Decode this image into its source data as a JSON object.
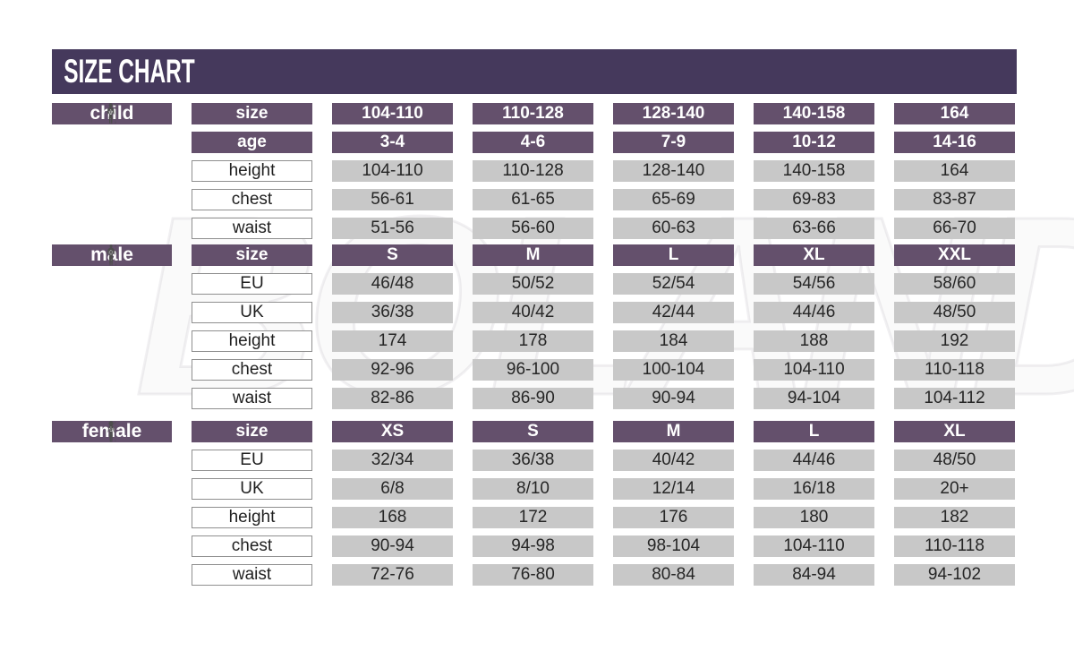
{
  "title": "SIZE CHART",
  "watermark": "BOLAND",
  "colors": {
    "banner": "#45395c",
    "header_purple": "#64506c",
    "value_cell_gray": "#c8c8c8",
    "figure_gray": "#4d4d4d",
    "text_dark": "#262626"
  },
  "figure_labels": {
    "height": "h",
    "chest": "c",
    "waist": "w"
  },
  "sections": [
    {
      "id": "child",
      "label": "child",
      "figure": "child",
      "header_rows": [
        {
          "label": "size",
          "values": [
            "104-110",
            "110-128",
            "128-140",
            "140-158",
            "164"
          ]
        },
        {
          "label": "age",
          "values": [
            "3-4",
            "4-6",
            "7-9",
            "10-12",
            "14-16"
          ]
        }
      ],
      "data_rows": [
        {
          "label": "height",
          "values": [
            "104-110",
            "110-128",
            "128-140",
            "140-158",
            "164"
          ]
        },
        {
          "label": "chest",
          "values": [
            "56-61",
            "61-65",
            "65-69",
            "69-83",
            "83-87"
          ]
        },
        {
          "label": "waist",
          "values": [
            "51-56",
            "56-60",
            "60-63",
            "63-66",
            "66-70"
          ]
        }
      ]
    },
    {
      "id": "male",
      "label": "male",
      "figure": "male",
      "header_rows": [
        {
          "label": "size",
          "values": [
            "S",
            "M",
            "L",
            "XL",
            "XXL"
          ]
        }
      ],
      "data_rows": [
        {
          "label": "EU",
          "values": [
            "46/48",
            "50/52",
            "52/54",
            "54/56",
            "58/60"
          ]
        },
        {
          "label": "UK",
          "values": [
            "36/38",
            "40/42",
            "42/44",
            "44/46",
            "48/50"
          ]
        },
        {
          "label": "height",
          "values": [
            "174",
            "178",
            "184",
            "188",
            "192"
          ]
        },
        {
          "label": "chest",
          "values": [
            "92-96",
            "96-100",
            "100-104",
            "104-110",
            "110-118"
          ]
        },
        {
          "label": "waist",
          "values": [
            "82-86",
            "86-90",
            "90-94",
            "94-104",
            "104-112"
          ]
        }
      ]
    },
    {
      "id": "female",
      "label": "female",
      "figure": "female",
      "header_rows": [
        {
          "label": "size",
          "values": [
            "XS",
            "S",
            "M",
            "L",
            "XL"
          ]
        }
      ],
      "data_rows": [
        {
          "label": "EU",
          "values": [
            "32/34",
            "36/38",
            "40/42",
            "44/46",
            "48/50"
          ]
        },
        {
          "label": "UK",
          "values": [
            "6/8",
            "8/10",
            "12/14",
            "16/18",
            "20+"
          ]
        },
        {
          "label": "height",
          "values": [
            "168",
            "172",
            "176",
            "180",
            "182"
          ]
        },
        {
          "label": "chest",
          "values": [
            "90-94",
            "94-98",
            "98-104",
            "104-110",
            "110-118"
          ]
        },
        {
          "label": "waist",
          "values": [
            "72-76",
            "76-80",
            "80-84",
            "84-94",
            "94-102"
          ]
        }
      ]
    }
  ],
  "chart_data": [
    {
      "type": "table",
      "title": "child",
      "columns": [
        "size",
        "104-110",
        "110-128",
        "128-140",
        "140-158",
        "164"
      ],
      "rows": [
        [
          "age",
          "3-4",
          "4-6",
          "7-9",
          "10-12",
          "14-16"
        ],
        [
          "height",
          "104-110",
          "110-128",
          "128-140",
          "140-158",
          "164"
        ],
        [
          "chest",
          "56-61",
          "61-65",
          "65-69",
          "69-83",
          "83-87"
        ],
        [
          "waist",
          "51-56",
          "56-60",
          "60-63",
          "63-66",
          "66-70"
        ]
      ]
    },
    {
      "type": "table",
      "title": "male",
      "columns": [
        "size",
        "S",
        "M",
        "L",
        "XL",
        "XXL"
      ],
      "rows": [
        [
          "EU",
          "46/48",
          "50/52",
          "52/54",
          "54/56",
          "58/60"
        ],
        [
          "UK",
          "36/38",
          "40/42",
          "42/44",
          "44/46",
          "48/50"
        ],
        [
          "height",
          "174",
          "178",
          "184",
          "188",
          "192"
        ],
        [
          "chest",
          "92-96",
          "96-100",
          "100-104",
          "104-110",
          "110-118"
        ],
        [
          "waist",
          "82-86",
          "86-90",
          "90-94",
          "94-104",
          "104-112"
        ]
      ]
    },
    {
      "type": "table",
      "title": "female",
      "columns": [
        "size",
        "XS",
        "S",
        "M",
        "L",
        "XL"
      ],
      "rows": [
        [
          "EU",
          "32/34",
          "36/38",
          "40/42",
          "44/46",
          "48/50"
        ],
        [
          "UK",
          "6/8",
          "8/10",
          "12/14",
          "16/18",
          "20+"
        ],
        [
          "height",
          "168",
          "172",
          "176",
          "180",
          "182"
        ],
        [
          "chest",
          "90-94",
          "94-98",
          "98-104",
          "104-110",
          "110-118"
        ],
        [
          "waist",
          "72-76",
          "76-80",
          "80-84",
          "84-94",
          "94-102"
        ]
      ]
    }
  ]
}
